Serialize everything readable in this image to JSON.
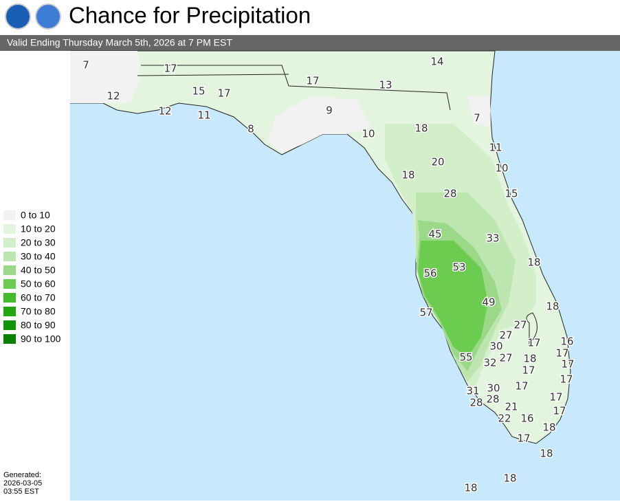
{
  "header": {
    "title": "Chance for Precipitation",
    "subtitle": "Valid Ending Thursday March 5th, 2026 at 7 PM EST"
  },
  "legend": [
    {
      "label": "0 to 10",
      "color": "#f2f2f2"
    },
    {
      "label": "10 to 20",
      "color": "#e3f5de"
    },
    {
      "label": "20 to 30",
      "color": "#d2efc9"
    },
    {
      "label": "30 to 40",
      "color": "#bde5b0"
    },
    {
      "label": "40 to 50",
      "color": "#9bd988"
    },
    {
      "label": "50 to 60",
      "color": "#6ccc50"
    },
    {
      "label": "60 to 70",
      "color": "#44bb2a"
    },
    {
      "label": "70 to 80",
      "color": "#22a80f"
    },
    {
      "label": "80 to 90",
      "color": "#129407"
    },
    {
      "label": "90 to 100",
      "color": "#0a7f00"
    }
  ],
  "generated": [
    "Generated:",
    "2026-03-05",
    "03:55 EST"
  ],
  "map_labels": [
    7,
    17,
    14,
    12,
    15,
    17,
    17,
    13,
    12,
    11,
    9,
    7,
    8,
    10,
    18,
    11,
    20,
    10,
    18,
    28,
    15,
    45,
    33,
    18,
    53,
    56,
    49,
    18,
    57,
    27,
    27,
    30,
    17,
    16,
    55,
    32,
    27,
    18,
    17,
    17,
    17,
    17,
    30,
    17,
    31,
    28,
    28,
    17,
    21,
    17,
    22,
    16,
    18,
    17,
    18,
    18,
    18
  ]
}
